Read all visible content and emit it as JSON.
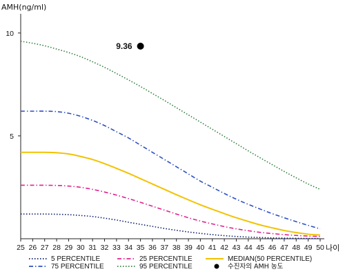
{
  "chart_data": {
    "type": "line",
    "ylabel": "AMH(ng/ml)",
    "xlabel": "나이",
    "x": [
      25,
      26,
      27,
      28,
      29,
      30,
      31,
      32,
      33,
      34,
      35,
      36,
      37,
      38,
      39,
      40,
      41,
      42,
      43,
      44,
      45,
      46,
      47,
      48,
      49,
      50
    ],
    "xlim": [
      25,
      50
    ],
    "ylim": [
      0,
      11
    ],
    "yticks": [
      5,
      10
    ],
    "grid": false,
    "legend_position": "bottom",
    "series": [
      {
        "name": "5 PERCENTILE",
        "color": "#0a1a6e",
        "style": "dotted",
        "values": [
          1.2,
          1.2,
          1.2,
          1.19,
          1.17,
          1.13,
          1.08,
          1.0,
          0.91,
          0.8,
          0.7,
          0.6,
          0.5,
          0.41,
          0.33,
          0.26,
          0.2,
          0.15,
          0.11,
          0.08,
          0.06,
          0.04,
          0.03,
          0.02,
          0.015,
          0.01
        ]
      },
      {
        "name": "25 PERCENTILE",
        "color": "#e0208e",
        "style": "dashdot",
        "values": [
          2.6,
          2.6,
          2.6,
          2.59,
          2.56,
          2.5,
          2.4,
          2.27,
          2.12,
          1.95,
          1.77,
          1.58,
          1.39,
          1.2,
          1.02,
          0.86,
          0.72,
          0.59,
          0.48,
          0.39,
          0.31,
          0.25,
          0.2,
          0.16,
          0.13,
          0.11
        ]
      },
      {
        "name": "75 PERCENTILE",
        "color": "#2c4fc4",
        "style": "dashdot",
        "values": [
          6.2,
          6.2,
          6.2,
          6.18,
          6.1,
          5.95,
          5.75,
          5.5,
          5.2,
          4.9,
          4.55,
          4.2,
          3.85,
          3.5,
          3.15,
          2.8,
          2.5,
          2.2,
          1.92,
          1.67,
          1.44,
          1.22,
          1.02,
          0.83,
          0.65,
          0.48
        ]
      },
      {
        "name": "95 PERCENTILE",
        "color": "#2e7d3c",
        "style": "dotted",
        "values": [
          9.6,
          9.5,
          9.38,
          9.22,
          9.05,
          8.85,
          8.6,
          8.33,
          8.03,
          7.72,
          7.4,
          7.06,
          6.72,
          6.37,
          6.02,
          5.67,
          5.32,
          4.97,
          4.62,
          4.27,
          3.93,
          3.6,
          3.27,
          2.96,
          2.66,
          2.4
        ]
      },
      {
        "name": "MEDIAN(50 PERCENTILE)",
        "color": "#f2c200",
        "style": "solid",
        "values": [
          4.2,
          4.2,
          4.2,
          4.18,
          4.12,
          4.0,
          3.85,
          3.65,
          3.42,
          3.18,
          2.92,
          2.66,
          2.4,
          2.14,
          1.89,
          1.65,
          1.43,
          1.22,
          1.02,
          0.84,
          0.67,
          0.53,
          0.4,
          0.3,
          0.22,
          0.18
        ]
      },
      {
        "name": "수진자의 AMH 농도",
        "color": "#000000",
        "style": "point",
        "x": [
          35
        ],
        "values": [
          9.36
        ],
        "label": "9.36"
      }
    ]
  }
}
